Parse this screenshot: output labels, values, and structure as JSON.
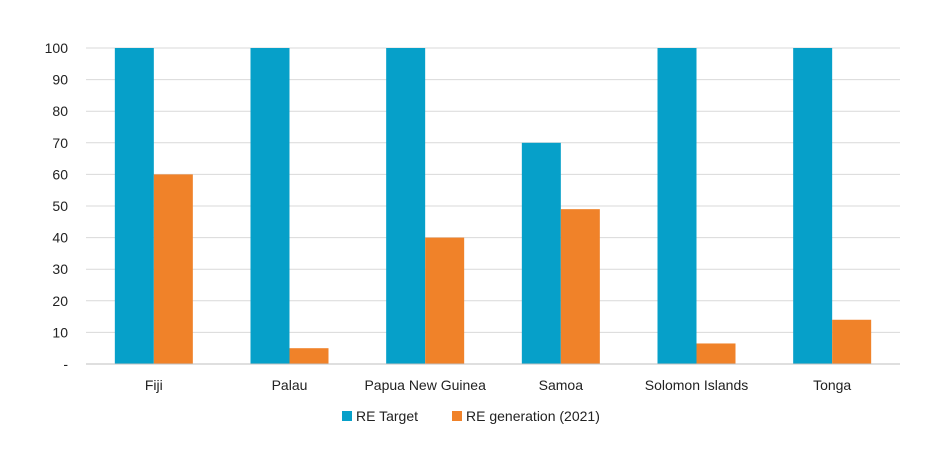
{
  "chart_data": {
    "type": "bar",
    "categories": [
      "Fiji",
      "Palau",
      "Papua New Guinea",
      "Samoa",
      "Solomon Islands",
      "Tonga"
    ],
    "series": [
      {
        "name": "RE Target",
        "color": "#06A0C9",
        "values": [
          100,
          100,
          100,
          70,
          100,
          100
        ]
      },
      {
        "name": "RE generation (2021)",
        "color": "#F08229",
        "values": [
          60,
          5,
          40,
          49,
          6.5,
          14
        ]
      }
    ],
    "ylim": [
      0,
      100
    ],
    "yticks": [
      {
        "value": 0,
        "label": "-"
      },
      {
        "value": 10,
        "label": "10"
      },
      {
        "value": 20,
        "label": "20"
      },
      {
        "value": 30,
        "label": "30"
      },
      {
        "value": 40,
        "label": "40"
      },
      {
        "value": 50,
        "label": "50"
      },
      {
        "value": 60,
        "label": "60"
      },
      {
        "value": 70,
        "label": "70"
      },
      {
        "value": 80,
        "label": "80"
      },
      {
        "value": 90,
        "label": "90"
      },
      {
        "value": 100,
        "label": "100"
      }
    ],
    "grid": true,
    "legend": "bottom-center"
  }
}
